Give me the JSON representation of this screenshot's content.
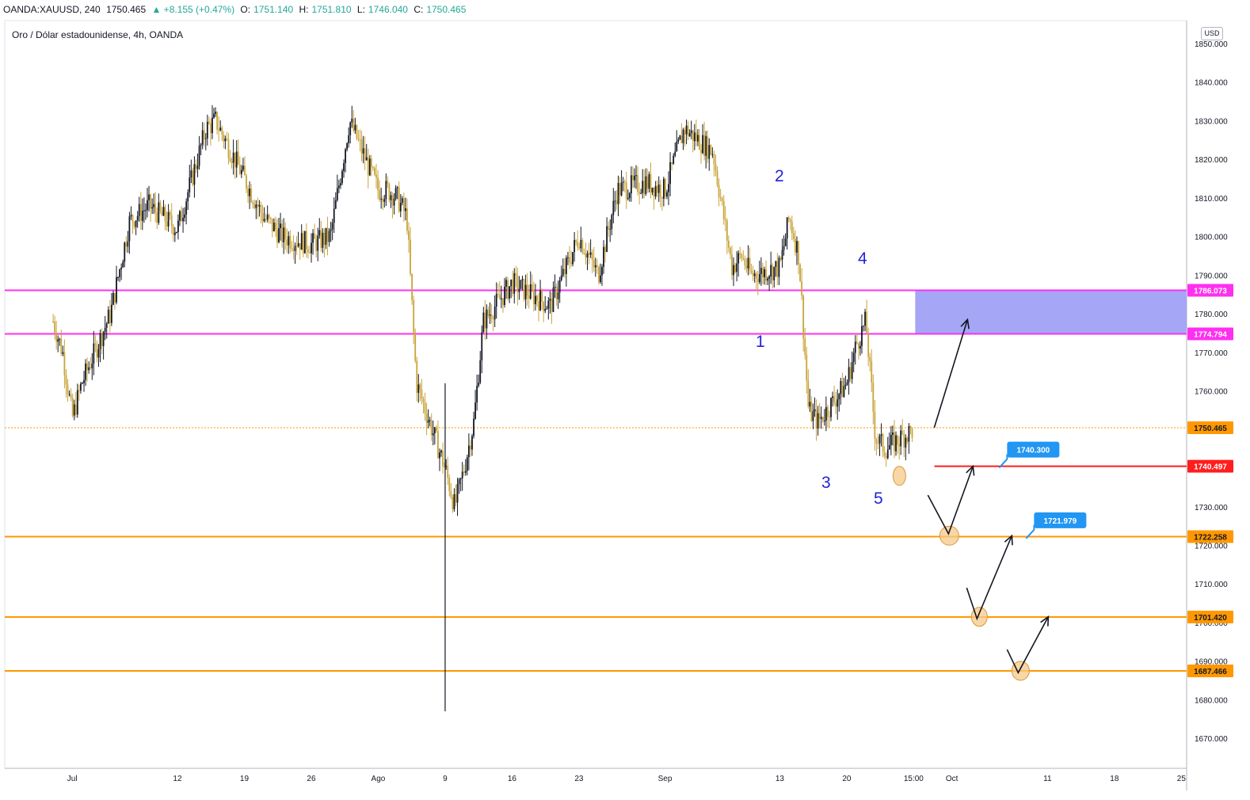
{
  "header": {
    "symbol": "OANDA:XAUUSD, 240",
    "last": "1750.465",
    "change": "▲ +8.155 (+0.47%)",
    "open_label": "O:",
    "open": "1751.140",
    "high_label": "H:",
    "high": "1751.810",
    "low_label": "L:",
    "low": "1746.040",
    "close_label": "C:",
    "close": "1750.465"
  },
  "currency_button": "USD",
  "colors": {
    "bull": "#131722",
    "bear": "#c9a43a",
    "magenta": "#ff2ff0",
    "orange": "#ff9800",
    "red": "#ff1d1d",
    "zone": "#9c9cf5",
    "wave": "#2323d6",
    "tag": "#2196f3"
  },
  "chart_data": {
    "type": "candlestick",
    "title": "Oro / Dólar estadounidense, 4h, OANDA",
    "y_axis": {
      "min": 1660,
      "max": 1852,
      "ticks": [
        "1850.000",
        "1840.000",
        "1830.000",
        "1820.000",
        "1810.000",
        "1800.000",
        "1790.000",
        "1780.000",
        "1770.000",
        "1760.000",
        "1750.000",
        "1740.000",
        "1730.000",
        "1720.000",
        "1710.000",
        "1700.000",
        "1690.000",
        "1680.000",
        "1670.000"
      ],
      "tick_values": [
        1850,
        1840,
        1830,
        1820,
        1810,
        1800,
        1790,
        1780,
        1770,
        1760,
        1750,
        1740,
        1730,
        1720,
        1710,
        1700,
        1690,
        1680,
        1670
      ]
    },
    "x_axis": {
      "labels": [
        "Jul",
        "12",
        "19",
        "26",
        "Ago",
        "9",
        "16",
        "23",
        "Sep",
        "13",
        "20",
        "15:00",
        "Oct",
        "11",
        "18",
        "25"
      ]
    },
    "price_path": [
      {
        "date": "2021-06-29",
        "price": 1778
      },
      {
        "date": "2021-06-30",
        "price": 1770
      },
      {
        "date": "2021-07-01",
        "price": 1753
      },
      {
        "date": "2021-07-02",
        "price": 1762
      },
      {
        "date": "2021-07-05",
        "price": 1780
      },
      {
        "date": "2021-07-07",
        "price": 1804
      },
      {
        "date": "2021-07-09",
        "price": 1808
      },
      {
        "date": "2021-07-12",
        "price": 1802
      },
      {
        "date": "2021-07-15",
        "price": 1828
      },
      {
        "date": "2021-07-16",
        "price": 1830
      },
      {
        "date": "2021-07-19",
        "price": 1815
      },
      {
        "date": "2021-07-20",
        "price": 1810
      },
      {
        "date": "2021-07-21",
        "price": 1805
      },
      {
        "date": "2021-07-23",
        "price": 1800
      },
      {
        "date": "2021-07-26",
        "price": 1798
      },
      {
        "date": "2021-07-28",
        "price": 1800
      },
      {
        "date": "2021-07-30",
        "price": 1830
      },
      {
        "date": "2021-08-02",
        "price": 1812
      },
      {
        "date": "2021-08-03",
        "price": 1812
      },
      {
        "date": "2021-08-04",
        "price": 1810
      },
      {
        "date": "2021-08-05",
        "price": 1805
      },
      {
        "date": "2021-08-06",
        "price": 1762
      },
      {
        "date": "2021-08-09",
        "price": 1740
      },
      {
        "date": "2021-08-10",
        "price": 1730
      },
      {
        "date": "2021-08-11",
        "price": 1740
      },
      {
        "date": "2021-08-12",
        "price": 1752
      },
      {
        "date": "2021-08-13",
        "price": 1778
      },
      {
        "date": "2021-08-16",
        "price": 1788
      },
      {
        "date": "2021-08-18",
        "price": 1785
      },
      {
        "date": "2021-08-20",
        "price": 1782
      },
      {
        "date": "2021-08-23",
        "price": 1800
      },
      {
        "date": "2021-08-25",
        "price": 1790
      },
      {
        "date": "2021-08-27",
        "price": 1812
      },
      {
        "date": "2021-08-30",
        "price": 1814
      },
      {
        "date": "2021-09-01",
        "price": 1812
      },
      {
        "date": "2021-09-03",
        "price": 1828
      },
      {
        "date": "2021-09-06",
        "price": 1822
      },
      {
        "date": "2021-09-08",
        "price": 1792
      },
      {
        "date": "2021-09-09",
        "price": 1795
      },
      {
        "date": "2021-09-10",
        "price": 1790
      },
      {
        "date": "2021-09-13",
        "price": 1792
      },
      {
        "date": "2021-09-14",
        "price": 1805
      },
      {
        "date": "2021-09-15",
        "price": 1795
      },
      {
        "date": "2021-09-16",
        "price": 1755
      },
      {
        "date": "2021-09-17",
        "price": 1752
      },
      {
        "date": "2021-09-20",
        "price": 1762
      },
      {
        "date": "2021-09-21",
        "price": 1772
      },
      {
        "date": "2021-09-22",
        "price": 1778
      },
      {
        "date": "2021-09-23",
        "price": 1748
      },
      {
        "date": "2021-09-24",
        "price": 1745
      },
      {
        "date": "2021-09-27",
        "price": 1750
      }
    ],
    "horizontal_levels": [
      {
        "price": 1786.073,
        "label": "1786.073",
        "color": "#ff2ff0"
      },
      {
        "price": 1774.794,
        "label": "1774.794",
        "color": "#ff2ff0"
      },
      {
        "price": 1750.465,
        "label": "1750.465",
        "color": "#ff9800",
        "style": "dotted"
      },
      {
        "price": 1740.497,
        "label": "1740.497",
        "color": "#ff1d1d"
      },
      {
        "price": 1722.258,
        "label": "1722.258",
        "color": "#ff9800"
      },
      {
        "price": 1701.42,
        "label": "1701.420",
        "color": "#ff9800"
      },
      {
        "price": 1687.466,
        "label": "1687.466",
        "color": "#ff9800"
      }
    ],
    "target_zone": {
      "top": 1786.073,
      "bottom": 1774.794
    },
    "price_tags": [
      {
        "label": "1740.300",
        "price": 1740.3
      },
      {
        "label": "1721.979",
        "price": 1721.979
      }
    ],
    "wave_labels": [
      "1",
      "2",
      "3",
      "4",
      "5"
    ]
  }
}
